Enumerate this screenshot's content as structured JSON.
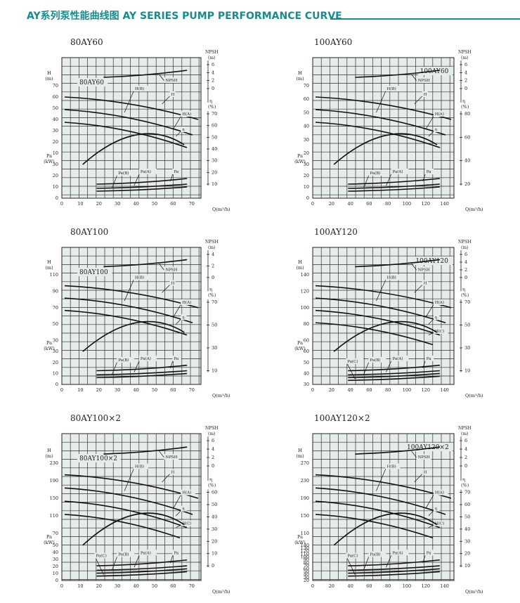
{
  "header": {
    "title": "AY系列泵性能曲线图  AY SERIES PUMP PERFORMANCE CURVE",
    "accent": "#1a8a8c"
  },
  "grid": {
    "bg": "#e6ebec",
    "line": "#222222"
  },
  "charts": [
    {
      "model": "80AY60",
      "box_label": "80AY60",
      "box_pos": "top-left",
      "x_ticks": [
        0,
        10,
        20,
        30,
        40,
        50,
        60,
        70
      ],
      "x_max": 75,
      "x_label": "Q(m³/h)",
      "head": {
        "label": "H",
        "unit": "(m)",
        "ticks": [
          10,
          20,
          30,
          40,
          50,
          60,
          70
        ],
        "range": [
          0,
          80
        ]
      },
      "power": {
        "label": "Pa",
        "unit": "(kW)",
        "ticks": [
          0,
          10,
          20,
          30
        ]
      },
      "npsh": {
        "label": "NPSH",
        "unit": "(m)",
        "ticks": [
          0,
          2,
          4,
          6
        ]
      },
      "eff": {
        "label": "η",
        "unit": "(%)",
        "ticks": [
          10,
          20,
          30,
          40,
          50,
          60,
          70
        ]
      },
      "labels": {
        "npsh": "NPSH",
        "h": "H",
        "hb": "H(B)",
        "ha": "H(A)",
        "eta": "η",
        "pb": "Pa(B)",
        "pa_a": "Pa(A)",
        "pa": "Pa"
      }
    },
    {
      "model": "100AY60",
      "box_label": "100AY60",
      "box_pos": "top-right",
      "x_ticks": [
        0,
        20,
        40,
        60,
        80,
        100,
        120,
        140
      ],
      "x_max": 150,
      "x_label": "Q(m³/h)",
      "head": {
        "label": "H",
        "unit": "(m)",
        "ticks": [
          20,
          30,
          40,
          50,
          60,
          70
        ],
        "range": [
          0,
          80
        ]
      },
      "power": {
        "label": "Pa",
        "unit": "(kW)",
        "ticks": [
          0,
          10,
          20,
          30
        ]
      },
      "npsh": {
        "label": "NPSH",
        "unit": "(m)",
        "ticks": [
          0,
          2,
          4,
          6
        ]
      },
      "eff": {
        "label": "η",
        "unit": "(%)",
        "ticks": [
          20,
          40,
          60,
          80
        ]
      },
      "labels": {
        "npsh": "NPSH",
        "h": "H",
        "hb": "H(B)",
        "ha": "H(A)",
        "eta": "η",
        "pb": "Pa(B)",
        "pa_a": "Pa(A)",
        "pa": "Pa"
      }
    },
    {
      "model": "80AY100",
      "box_label": "80AY100",
      "box_pos": "top-left",
      "x_ticks": [
        0,
        10,
        20,
        30,
        40,
        50,
        60,
        70
      ],
      "x_max": 75,
      "x_label": "Q(m³/h)",
      "head": {
        "label": "H",
        "unit": "(m)",
        "ticks": [
          30,
          50,
          70,
          90,
          110
        ],
        "range": [
          0,
          120
        ]
      },
      "power": {
        "label": "Pa",
        "unit": "(kW)",
        "ticks": [
          0,
          10,
          20,
          30
        ]
      },
      "npsh": {
        "label": "NPSH",
        "unit": "(m)",
        "ticks": [
          0,
          2,
          4
        ]
      },
      "eff": {
        "label": "η",
        "unit": "(%)",
        "ticks": [
          10,
          30,
          50,
          70
        ]
      },
      "labels": {
        "npsh": "NPSH",
        "h": "H",
        "hb": "H(B)",
        "ha": "H(A)",
        "eta": "η",
        "pb": "Pa(B)",
        "pa_a": "Pa(A)",
        "pa": "Pa"
      }
    },
    {
      "model": "100AY120",
      "box_label": "100AY120",
      "box_pos": "top-right",
      "x_ticks": [
        0,
        20,
        40,
        60,
        80,
        100,
        120,
        140
      ],
      "x_max": 150,
      "x_label": "Q(m³/h)",
      "head": {
        "label": "H",
        "unit": "(m)",
        "ticks": [
          60,
          80,
          100,
          120,
          140
        ],
        "range": [
          0,
          150
        ]
      },
      "power": {
        "label": "Pa",
        "unit": "(kW)",
        "ticks": [
          30,
          40,
          50,
          60
        ]
      },
      "npsh": {
        "label": "NPSH",
        "unit": "(m)",
        "ticks": [
          0,
          2,
          4,
          6
        ]
      },
      "eff": {
        "label": "η",
        "unit": "(%)",
        "ticks": [
          10,
          30,
          50,
          70
        ]
      },
      "labels": {
        "npsh": "NPSH",
        "h": "H",
        "hb": "H(B)",
        "ha": "H(A)",
        "eta": "η",
        "pb": "Pa(B)",
        "pa_a": "Pa(A)",
        "pa": "Pa",
        "hc": "H(C)",
        "pc": "Pa(C)"
      }
    },
    {
      "model": "80AY100×2",
      "box_label": "80AY100×2",
      "box_pos": "top-left",
      "x_ticks": [
        0,
        10,
        20,
        30,
        40,
        50,
        60,
        70
      ],
      "x_max": 75,
      "x_label": "Q(m³/h)",
      "head": {
        "label": "H",
        "unit": "(m)",
        "ticks": [
          70,
          110,
          150,
          190,
          230
        ],
        "range": [
          0,
          250
        ]
      },
      "power": {
        "label": "Pa",
        "unit": "(kW)",
        "ticks": [
          0,
          10,
          20,
          30,
          40,
          50
        ]
      },
      "npsh": {
        "label": "NPSH",
        "unit": "(m)",
        "ticks": [
          0,
          2,
          4,
          6
        ]
      },
      "eff": {
        "label": "η",
        "unit": "(%)",
        "ticks": [
          0,
          10,
          20,
          30,
          40,
          50,
          60
        ]
      },
      "labels": {
        "npsh": "NPSH",
        "h": "H",
        "hb": "H(B)",
        "ha": "H(A)",
        "eta": "η",
        "pb": "Pa(B)",
        "pa_a": "Pa(A)",
        "pa": "Pa",
        "hc": "H(C)",
        "pc": "Pa(C)"
      }
    },
    {
      "model": "100AY120×2",
      "box_label": "100AY120×2",
      "box_pos": "top-right",
      "x_ticks": [
        0,
        20,
        40,
        60,
        80,
        100,
        120,
        140
      ],
      "x_max": 150,
      "x_label": "Q(m³/h)",
      "head": {
        "label": "H",
        "unit": "(m)",
        "ticks": [
          110,
          150,
          190,
          230,
          270
        ],
        "range": [
          0,
          290
        ]
      },
      "power": {
        "label": "Pa",
        "unit": "(kW)",
        "ticks": [
          20,
          30,
          40,
          50,
          60,
          70,
          80,
          90,
          100,
          110,
          120,
          130,
          140
        ]
      },
      "npsh": {
        "label": "NPSH",
        "unit": "(m)",
        "ticks": [
          0,
          2,
          4,
          6
        ]
      },
      "eff": {
        "label": "η",
        "unit": "(%)",
        "ticks": [
          10,
          20,
          30,
          40,
          50,
          60,
          70
        ]
      },
      "labels": {
        "npsh": "NPSH",
        "h": "H",
        "hb": "H(B)",
        "ha": "H(A)",
        "eta": "η",
        "pb": "Pa(B)",
        "pa_a": "Pa(A)",
        "pa": "Pa",
        "hc": "H(C)",
        "pc": "Pa(C)"
      }
    }
  ]
}
